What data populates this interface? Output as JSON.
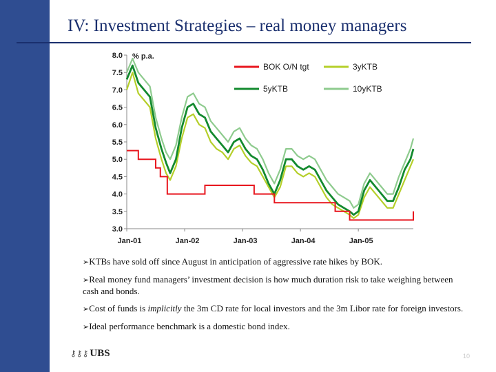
{
  "slide": {
    "title": "IV: Investment Strategies – real money managers",
    "bullets": [
      {
        "parts": [
          "KTBs have sold off since August in anticipation of aggressive rate hikes by BOK."
        ],
        "italic": []
      },
      {
        "parts": [
          "Real money fund managers’ investment decision is how much duration risk to take weighing between cash and bonds."
        ],
        "italic": []
      },
      {
        "parts": [
          "Cost of funds is ",
          "implicitly",
          " the 3m CD rate for local investors and the 3m Libor rate for foreign investors."
        ],
        "italic": [
          1
        ]
      },
      {
        "parts": [
          "Ideal performance benchmark is a domestic bond index."
        ],
        "italic": []
      }
    ],
    "bullet_marker": "➢",
    "logo_text": "UBS",
    "page_number": "10"
  },
  "colors": {
    "sidebar": "#2f4d91",
    "title": "#1a2f6e",
    "bok": "#e8161e",
    "y3": "#b5cf2a",
    "y5": "#138a2e",
    "y10": "#8ecb8e"
  },
  "chart_data": {
    "type": "line",
    "unit_label": "% p.a.",
    "ylim": [
      3.0,
      8.0
    ],
    "yticks": [
      "8.0",
      "7.5",
      "7.0",
      "6.5",
      "6.0",
      "5.5",
      "5.0",
      "4.5",
      "4.0",
      "3.5",
      "3.0"
    ],
    "xticks": [
      {
        "label": "Jan-01",
        "t": 2001.0
      },
      {
        "label": "Jan-02",
        "t": 2002.0
      },
      {
        "label": "Jan-03",
        "t": 2003.0
      },
      {
        "label": "Jan-04",
        "t": 2004.0
      },
      {
        "label": "Jan-05",
        "t": 2005.0
      }
    ],
    "xlim": [
      2001.0,
      2005.95
    ],
    "grid": false,
    "legend_position": "top-right",
    "series": [
      {
        "name": "BOK O/N tgt",
        "color_key": "bok",
        "step": true,
        "points": [
          [
            2001.0,
            5.25
          ],
          [
            2001.2,
            5.0
          ],
          [
            2001.5,
            4.75
          ],
          [
            2001.58,
            4.5
          ],
          [
            2001.7,
            4.0
          ],
          [
            2002.35,
            4.25
          ],
          [
            2003.2,
            4.0
          ],
          [
            2003.35,
            4.0
          ],
          [
            2003.55,
            3.75
          ],
          [
            2004.6,
            3.5
          ],
          [
            2004.85,
            3.25
          ],
          [
            2005.95,
            3.25
          ],
          [
            2005.95,
            3.5
          ]
        ]
      },
      {
        "name": "3y KTB",
        "color_key": "y3",
        "width": 2.2,
        "points": [
          [
            2001.0,
            7.0
          ],
          [
            2001.1,
            7.5
          ],
          [
            2001.2,
            6.9
          ],
          [
            2001.3,
            6.7
          ],
          [
            2001.4,
            6.5
          ],
          [
            2001.5,
            5.6
          ],
          [
            2001.6,
            5.0
          ],
          [
            2001.68,
            4.6
          ],
          [
            2001.75,
            4.4
          ],
          [
            2001.85,
            4.8
          ],
          [
            2001.95,
            5.6
          ],
          [
            2002.05,
            6.2
          ],
          [
            2002.15,
            6.3
          ],
          [
            2002.25,
            6.0
          ],
          [
            2002.35,
            5.9
          ],
          [
            2002.45,
            5.5
          ],
          [
            2002.55,
            5.3
          ],
          [
            2002.65,
            5.2
          ],
          [
            2002.75,
            5.0
          ],
          [
            2002.85,
            5.3
          ],
          [
            2002.95,
            5.4
          ],
          [
            2003.05,
            5.1
          ],
          [
            2003.15,
            4.9
          ],
          [
            2003.25,
            4.8
          ],
          [
            2003.35,
            4.5
          ],
          [
            2003.45,
            4.2
          ],
          [
            2003.55,
            3.9
          ],
          [
            2003.65,
            4.2
          ],
          [
            2003.75,
            4.8
          ],
          [
            2003.85,
            4.8
          ],
          [
            2003.95,
            4.6
          ],
          [
            2004.05,
            4.5
          ],
          [
            2004.15,
            4.6
          ],
          [
            2004.25,
            4.5
          ],
          [
            2004.35,
            4.2
          ],
          [
            2004.45,
            3.9
          ],
          [
            2004.55,
            3.7
          ],
          [
            2004.65,
            3.6
          ],
          [
            2004.75,
            3.5
          ],
          [
            2004.85,
            3.4
          ],
          [
            2004.92,
            3.3
          ],
          [
            2005.0,
            3.4
          ],
          [
            2005.1,
            3.9
          ],
          [
            2005.2,
            4.2
          ],
          [
            2005.3,
            4.0
          ],
          [
            2005.4,
            3.8
          ],
          [
            2005.5,
            3.6
          ],
          [
            2005.6,
            3.6
          ],
          [
            2005.7,
            4.0
          ],
          [
            2005.8,
            4.4
          ],
          [
            2005.9,
            4.8
          ],
          [
            2005.95,
            5.0
          ]
        ]
      },
      {
        "name": "5y KTB",
        "color_key": "y5",
        "width": 2.8,
        "points": [
          [
            2001.0,
            7.3
          ],
          [
            2001.1,
            7.7
          ],
          [
            2001.2,
            7.2
          ],
          [
            2001.3,
            7.0
          ],
          [
            2001.4,
            6.8
          ],
          [
            2001.5,
            5.9
          ],
          [
            2001.6,
            5.3
          ],
          [
            2001.68,
            4.9
          ],
          [
            2001.75,
            4.6
          ],
          [
            2001.85,
            5.0
          ],
          [
            2001.95,
            5.9
          ],
          [
            2002.05,
            6.5
          ],
          [
            2002.15,
            6.6
          ],
          [
            2002.25,
            6.3
          ],
          [
            2002.35,
            6.2
          ],
          [
            2002.45,
            5.8
          ],
          [
            2002.55,
            5.6
          ],
          [
            2002.65,
            5.4
          ],
          [
            2002.75,
            5.2
          ],
          [
            2002.85,
            5.5
          ],
          [
            2002.95,
            5.6
          ],
          [
            2003.05,
            5.3
          ],
          [
            2003.15,
            5.1
          ],
          [
            2003.25,
            5.0
          ],
          [
            2003.35,
            4.7
          ],
          [
            2003.45,
            4.3
          ],
          [
            2003.55,
            4.0
          ],
          [
            2003.65,
            4.4
          ],
          [
            2003.75,
            5.0
          ],
          [
            2003.85,
            5.0
          ],
          [
            2003.95,
            4.8
          ],
          [
            2004.05,
            4.7
          ],
          [
            2004.15,
            4.8
          ],
          [
            2004.25,
            4.7
          ],
          [
            2004.35,
            4.4
          ],
          [
            2004.45,
            4.1
          ],
          [
            2004.55,
            3.9
          ],
          [
            2004.65,
            3.7
          ],
          [
            2004.75,
            3.6
          ],
          [
            2004.85,
            3.5
          ],
          [
            2004.92,
            3.4
          ],
          [
            2005.0,
            3.5
          ],
          [
            2005.1,
            4.1
          ],
          [
            2005.2,
            4.4
          ],
          [
            2005.3,
            4.2
          ],
          [
            2005.4,
            4.0
          ],
          [
            2005.5,
            3.8
          ],
          [
            2005.6,
            3.8
          ],
          [
            2005.7,
            4.2
          ],
          [
            2005.8,
            4.7
          ],
          [
            2005.9,
            5.0
          ],
          [
            2005.95,
            5.3
          ]
        ]
      },
      {
        "name": "10y KTB",
        "color_key": "y10",
        "width": 2.2,
        "points": [
          [
            2001.0,
            7.5
          ],
          [
            2001.1,
            7.9
          ],
          [
            2001.2,
            7.5
          ],
          [
            2001.3,
            7.3
          ],
          [
            2001.4,
            7.1
          ],
          [
            2001.5,
            6.2
          ],
          [
            2001.6,
            5.6
          ],
          [
            2001.68,
            5.2
          ],
          [
            2001.75,
            5.0
          ],
          [
            2001.85,
            5.4
          ],
          [
            2001.95,
            6.2
          ],
          [
            2002.05,
            6.8
          ],
          [
            2002.15,
            6.9
          ],
          [
            2002.25,
            6.6
          ],
          [
            2002.35,
            6.5
          ],
          [
            2002.45,
            6.1
          ],
          [
            2002.55,
            5.9
          ],
          [
            2002.65,
            5.7
          ],
          [
            2002.75,
            5.5
          ],
          [
            2002.85,
            5.8
          ],
          [
            2002.95,
            5.9
          ],
          [
            2003.05,
            5.6
          ],
          [
            2003.15,
            5.4
          ],
          [
            2003.25,
            5.3
          ],
          [
            2003.35,
            5.0
          ],
          [
            2003.45,
            4.6
          ],
          [
            2003.55,
            4.3
          ],
          [
            2003.65,
            4.7
          ],
          [
            2003.75,
            5.3
          ],
          [
            2003.85,
            5.3
          ],
          [
            2003.95,
            5.1
          ],
          [
            2004.05,
            5.0
          ],
          [
            2004.15,
            5.1
          ],
          [
            2004.25,
            5.0
          ],
          [
            2004.35,
            4.7
          ],
          [
            2004.45,
            4.4
          ],
          [
            2004.55,
            4.2
          ],
          [
            2004.65,
            4.0
          ],
          [
            2004.75,
            3.9
          ],
          [
            2004.85,
            3.8
          ],
          [
            2004.92,
            3.6
          ],
          [
            2005.0,
            3.7
          ],
          [
            2005.1,
            4.3
          ],
          [
            2005.2,
            4.6
          ],
          [
            2005.3,
            4.4
          ],
          [
            2005.4,
            4.2
          ],
          [
            2005.5,
            4.0
          ],
          [
            2005.6,
            4.0
          ],
          [
            2005.7,
            4.5
          ],
          [
            2005.8,
            4.9
          ],
          [
            2005.9,
            5.3
          ],
          [
            2005.95,
            5.6
          ]
        ]
      }
    ],
    "legend": [
      {
        "label": "BOK O/N tgt",
        "color_key": "bok"
      },
      {
        "label": "3yKTB",
        "color_key": "y3"
      },
      {
        "label": "5yKTB",
        "color_key": "y5"
      },
      {
        "label": "10yKTB",
        "color_key": "y10"
      }
    ]
  }
}
